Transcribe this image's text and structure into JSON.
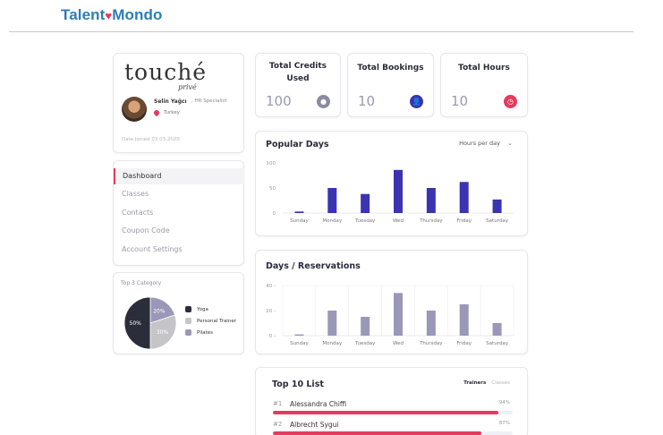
{
  "brand": {
    "part1": "Talent",
    "part2": "Mondo"
  },
  "profile": {
    "logo_main": "touché",
    "logo_sub": "privé",
    "name": "Selin Yağcı",
    "role": ", HR Specialist",
    "country": "Turkey",
    "date_joined": "Date joined 03.03.2020"
  },
  "menu": {
    "items": [
      {
        "label": "Dashboard",
        "active": true
      },
      {
        "label": "Classes"
      },
      {
        "label": "Contacts"
      },
      {
        "label": "Coupon Code"
      },
      {
        "label": "Account Settings"
      }
    ]
  },
  "category": {
    "title": "Top 3 Category",
    "chart_data": {
      "type": "pie",
      "categories": [
        "Yoga",
        "Personal Trainer",
        "Pilates"
      ],
      "values": [
        50,
        30,
        20
      ],
      "labels": [
        "50%",
        "30%",
        "20%"
      ],
      "colors": [
        "#2b2d3b",
        "#c4c4c9",
        "#9a97b8"
      ]
    }
  },
  "stats": [
    {
      "title": "Total Credits Used",
      "value": "100",
      "icon": "coins-icon",
      "color": "#8a8aa0"
    },
    {
      "title": "Total Bookings",
      "value": "10",
      "icon": "user-icon",
      "color": "#3a34b0"
    },
    {
      "title": "Total Hours",
      "value": "10",
      "icon": "clock-icon",
      "color": "#e6395f"
    }
  ],
  "popular": {
    "title": "Popular Days",
    "dropdown": "Hours per day",
    "chart_data": {
      "type": "bar",
      "categories": [
        "Sunday",
        "Monday",
        "Tuesday",
        "Wed",
        "Thursday",
        "Friday",
        "Saturday"
      ],
      "values": [
        3,
        50,
        38,
        86,
        50,
        62,
        27
      ],
      "ylim": [
        0,
        100
      ],
      "yticks": [
        "100",
        "50",
        "0"
      ],
      "color": "#3a34b0"
    }
  },
  "reservations": {
    "title": "Days / Reservations",
    "chart_data": {
      "type": "bar",
      "categories": [
        "Sunday",
        "Monday",
        "Tuesday",
        "Wed",
        "Thursday",
        "Friday",
        "Saturday"
      ],
      "values": [
        1,
        20,
        15,
        34,
        20,
        25,
        10
      ],
      "ylim": [
        0,
        40
      ],
      "yticks": [
        "40",
        "20",
        "0"
      ],
      "color": "#9a97b8"
    }
  },
  "top10": {
    "title": "Top 10 List",
    "tab_on": "Trainers",
    "tab_off": "Classes",
    "rows": [
      {
        "rank": "#1",
        "name": "Alessandra Chiffi",
        "pct": "94%",
        "value": 94
      },
      {
        "rank": "#2",
        "name": "Albrecht Sygui",
        "pct": "87%",
        "value": 87
      }
    ]
  }
}
